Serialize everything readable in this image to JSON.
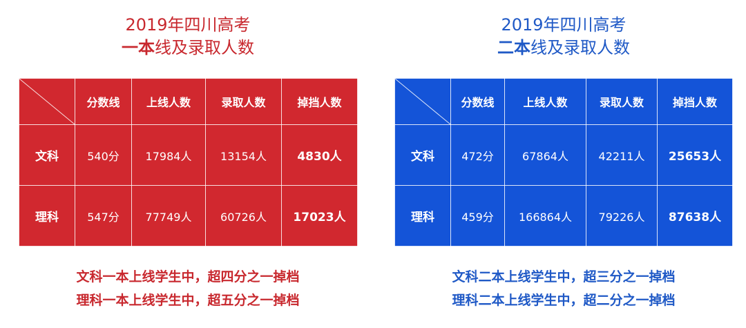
{
  "left": {
    "title_line1": "2019年四川高考",
    "title_bold": "一本",
    "title_rest": "线及录取人数",
    "headers": [
      "分数线",
      "上线人数",
      "录取人数",
      "掉挡人数"
    ],
    "rows": [
      {
        "label": "文科",
        "cells": [
          "540分",
          "17984人",
          "13154人",
          "4830人"
        ]
      },
      {
        "label": "理科",
        "cells": [
          "547分",
          "77749人",
          "60726人",
          "17023人"
        ]
      }
    ],
    "notes": [
      "文科一本上线学生中，超四分之一掉档",
      "理科一本上线学生中，超五分之一掉档"
    ]
  },
  "right": {
    "title_line1": "2019年四川高考",
    "title_bold": "二本",
    "title_rest": "线及录取人数",
    "headers": [
      "分数线",
      "上线人数",
      "录取人数",
      "掉挡人数"
    ],
    "rows": [
      {
        "label": "文科",
        "cells": [
          "472分",
          "67864人",
          "42211人",
          "25653人"
        ]
      },
      {
        "label": "理科",
        "cells": [
          "459分",
          "166864人",
          "79226人",
          "87638人"
        ]
      }
    ],
    "notes": [
      "文科二本上线学生中，超三分之一掉档",
      "理科二本上线学生中，超二分之一掉档"
    ]
  },
  "colors": {
    "red_text": "#c8282e",
    "red_table": "#d1282f",
    "blue_text": "#1f59c6",
    "blue_table": "#1454d8"
  }
}
